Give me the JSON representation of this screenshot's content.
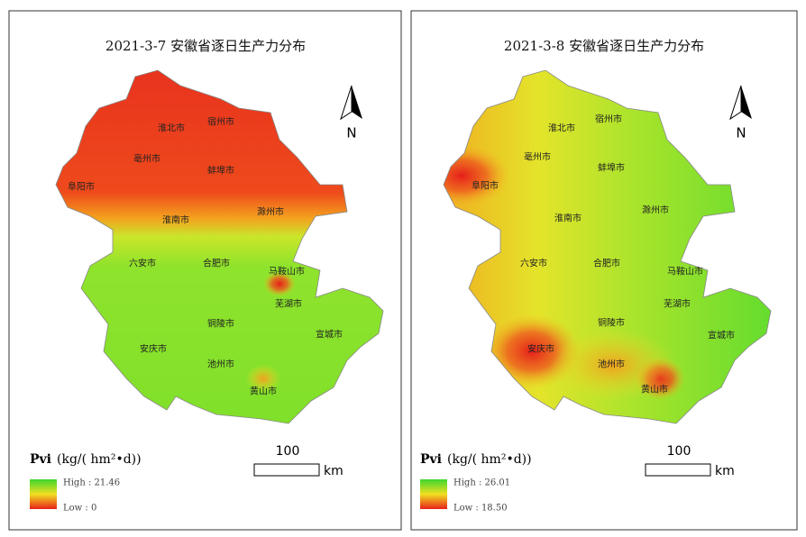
{
  "panels": [
    {
      "title": "2021-3-7  安徽省逐日生产力分布",
      "cities": [
        "淮北市",
        "宿州市",
        "亳州市",
        "蚌埠市",
        "阜阳市",
        "淮南市",
        "滁州市",
        "六安市",
        "合肥市",
        "马鞍山市",
        "芜湖市",
        "铜陵市",
        "安庆市",
        "池州市",
        "宣城市",
        "黄山市"
      ],
      "north": "N",
      "scale_value": "100",
      "scale_unit": "km",
      "legend": {
        "variable": "Pvi",
        "unit": "(kg/( hm²•d))",
        "high": "High : 21.46",
        "low": "Low :  0"
      }
    },
    {
      "title": "2021-3-8  安徽省逐日生产力分布",
      "cities": [
        "淮北市",
        "宿州市",
        "亳州市",
        "蚌埠市",
        "阜阳市",
        "淮南市",
        "滁州市",
        "六安市",
        "合肥市",
        "马鞍山市",
        "芜湖市",
        "铜陵市",
        "安庆市",
        "池州市",
        "宣城市",
        "黄山市"
      ],
      "north": "N",
      "scale_value": "100",
      "scale_unit": "km",
      "legend": {
        "variable": "Pvi",
        "unit": "(kg/( hm²•d))",
        "high": "High : 26.01",
        "low": "Low : 18.50"
      }
    }
  ]
}
